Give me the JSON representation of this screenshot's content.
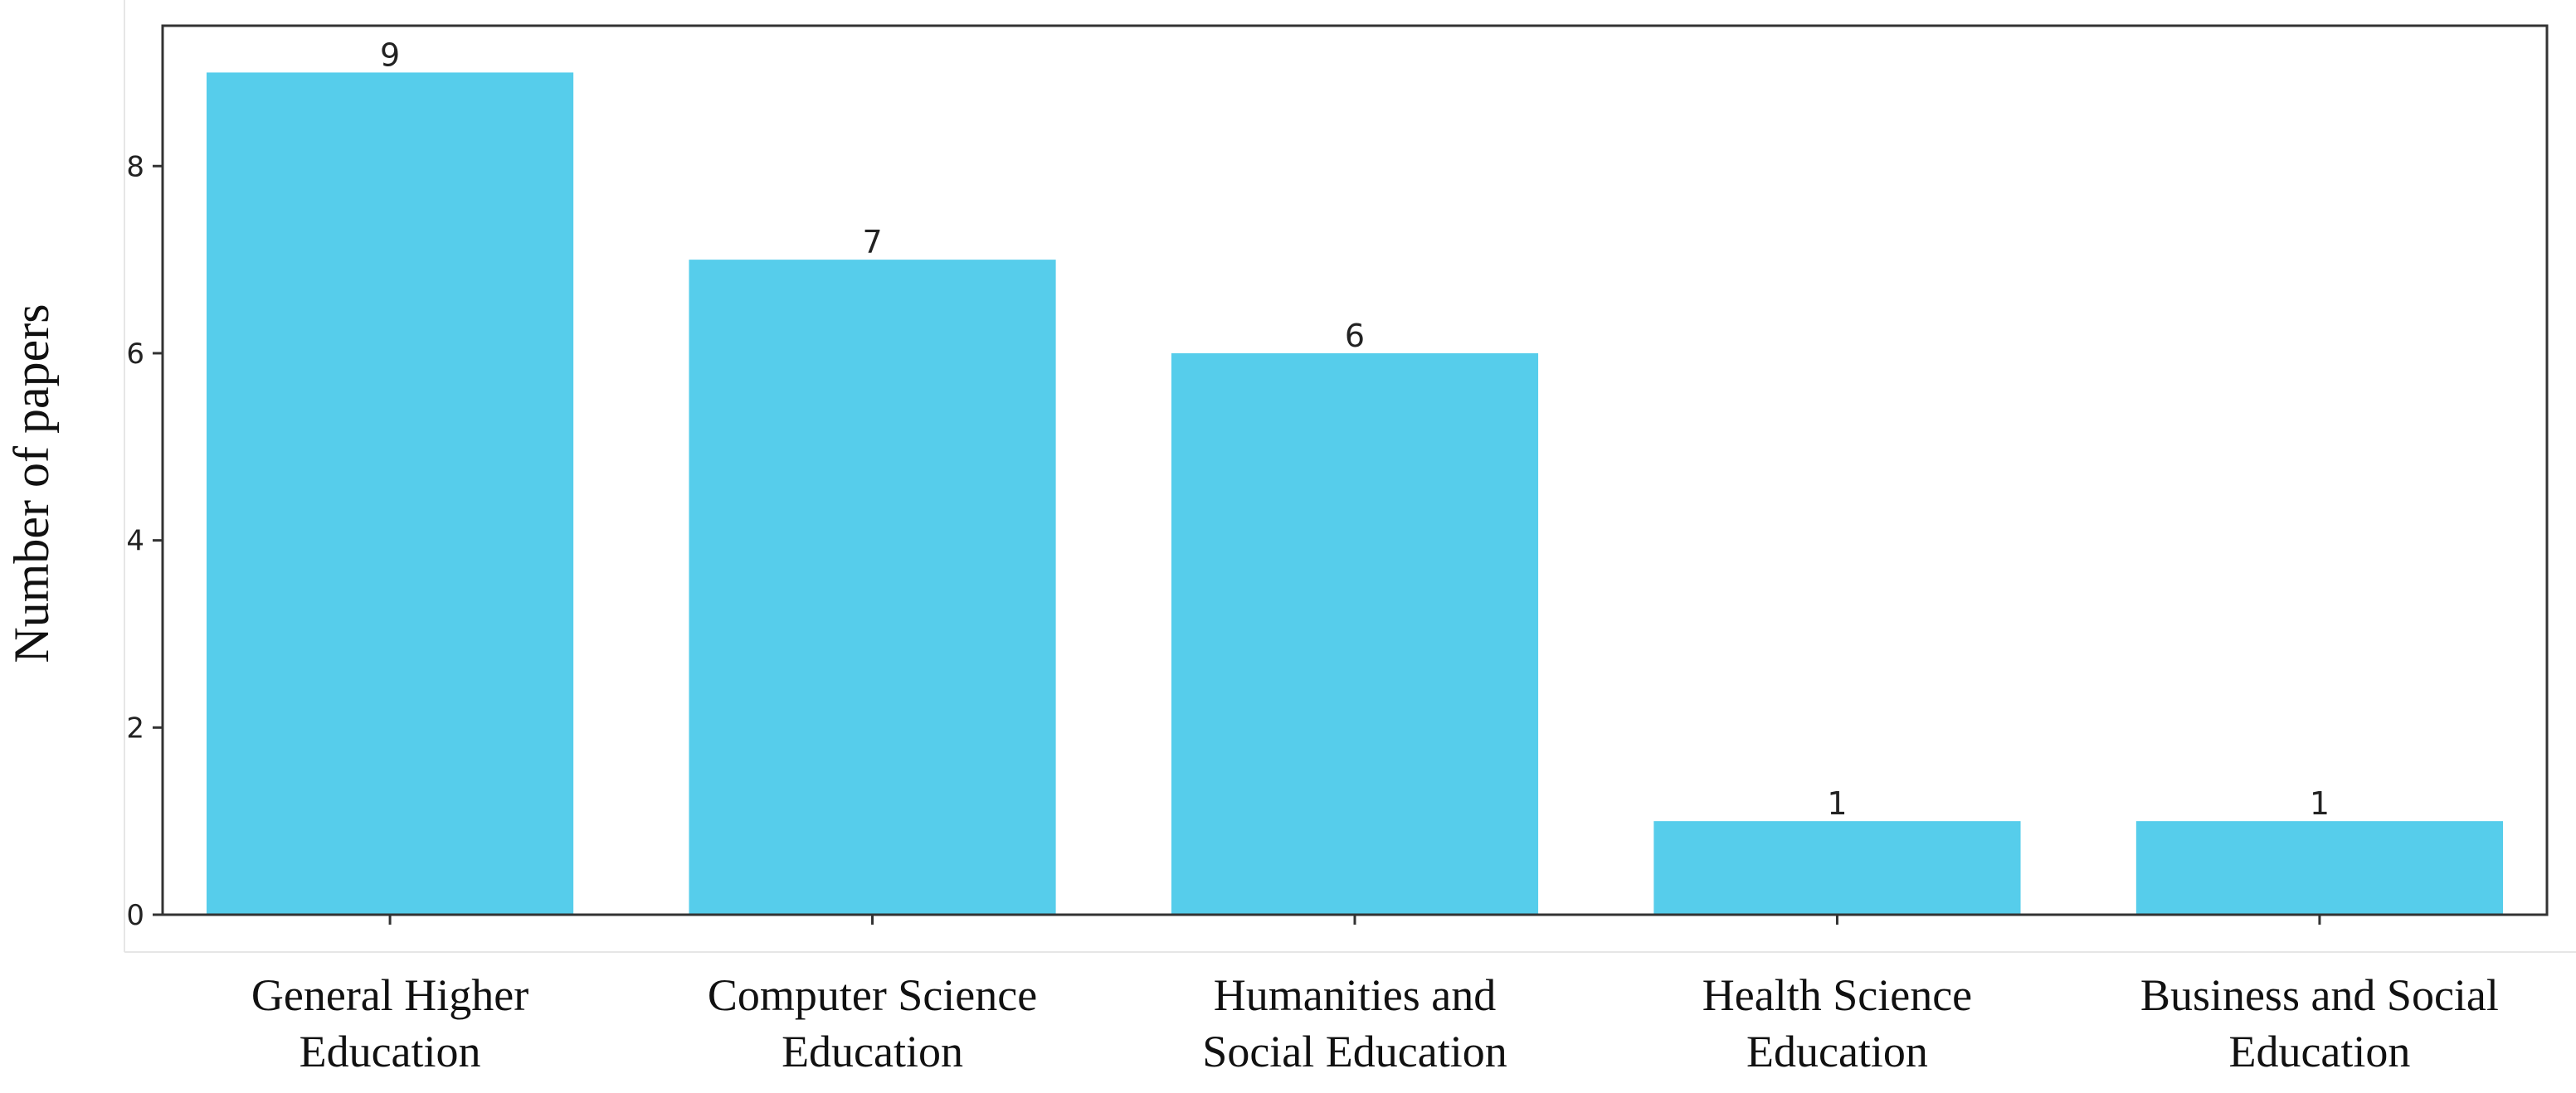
{
  "chart_data": {
    "type": "bar",
    "ylabel": "Number of papers",
    "xlabel": "",
    "categories": [
      [
        "General Higher",
        "Education"
      ],
      [
        "Computer Science",
        "Education"
      ],
      [
        "Humanities and",
        "Social Education"
      ],
      [
        "Health Science",
        "Education"
      ],
      [
        "Business and Social",
        "Education"
      ]
    ],
    "values": [
      9,
      7,
      6,
      1,
      1
    ],
    "data_labels": [
      "9",
      "7",
      "6",
      "1",
      "1"
    ],
    "ylim": [
      0,
      9.5
    ],
    "yticks": [
      0,
      2,
      4,
      6,
      8
    ],
    "ytick_labels": [
      "0",
      "2",
      "4",
      "6",
      "8"
    ],
    "grid": false,
    "legend": "none",
    "bar_color": "#56cdeb",
    "axis_color": "#333333"
  }
}
